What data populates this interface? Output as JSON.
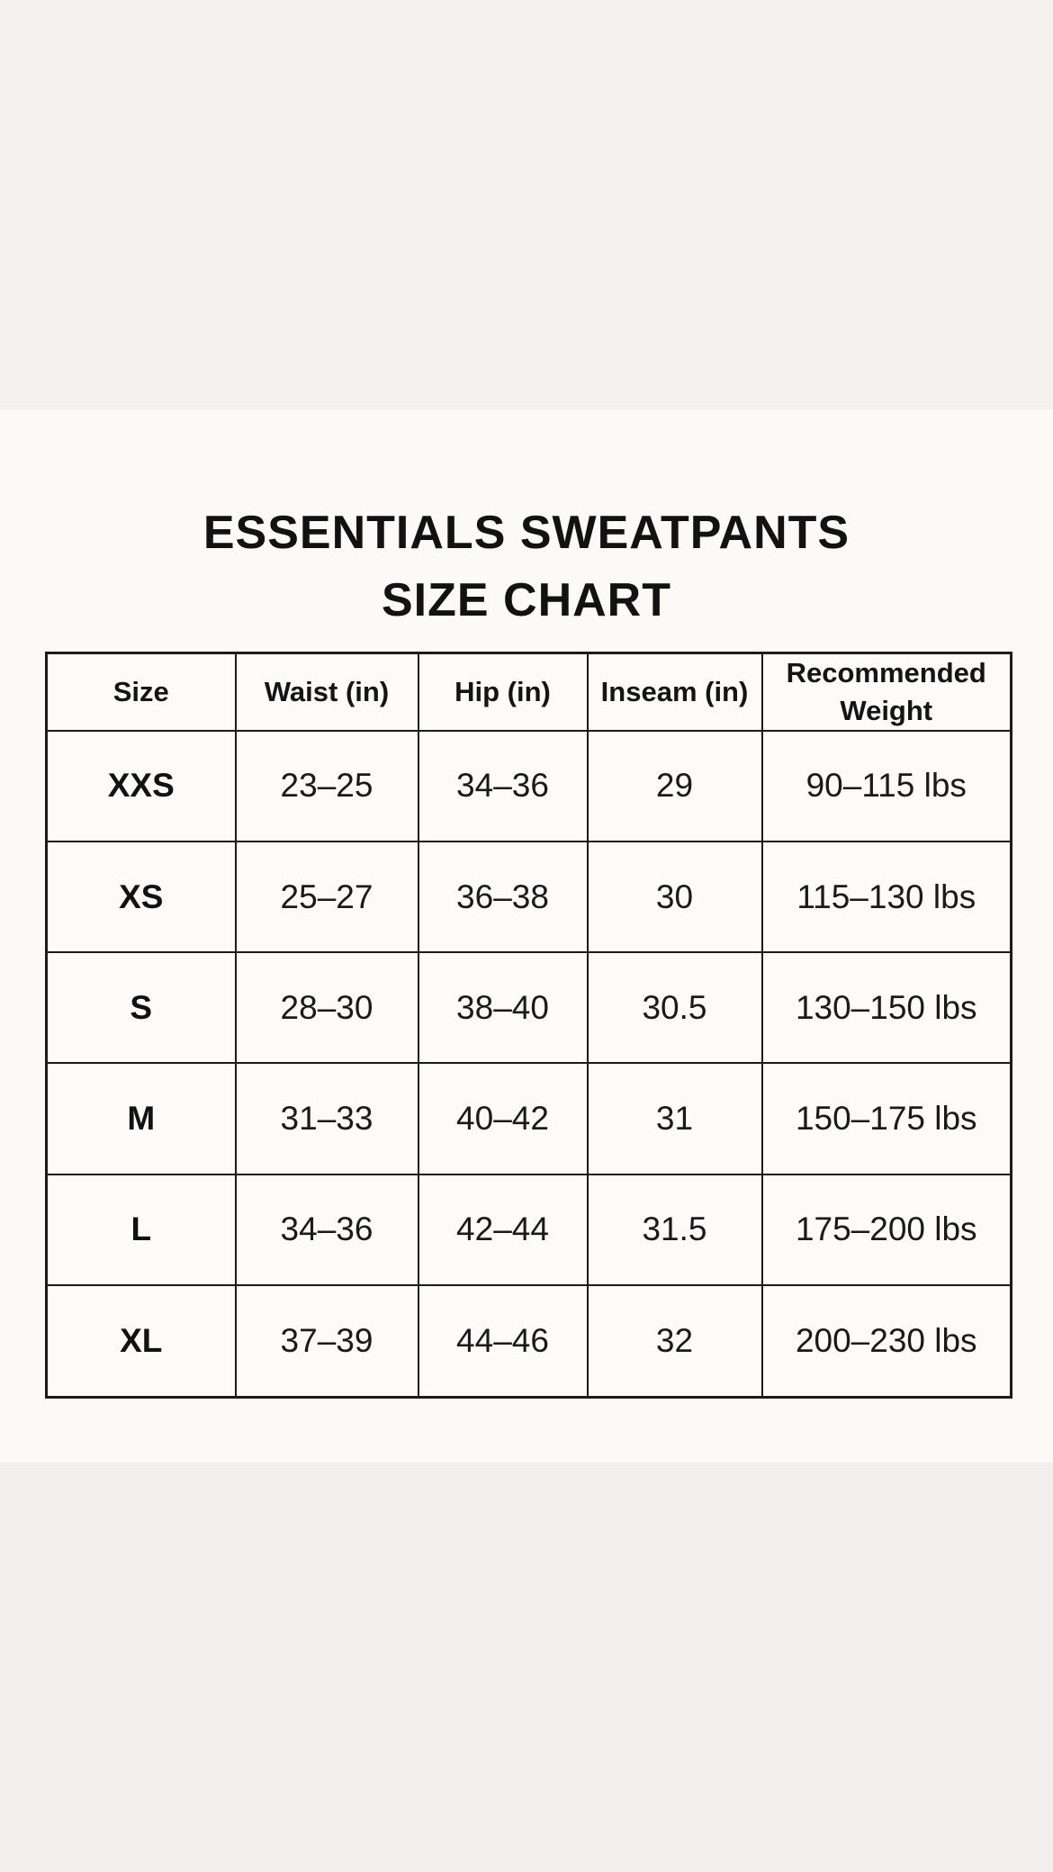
{
  "title": {
    "line1": "ESSENTIALS SWEATPANTS",
    "line2": "SIZE CHART"
  },
  "colors": {
    "band_top": "#f3f2ef",
    "band_bottom": "#f1f0ee",
    "content_background": "#fbfaf7",
    "table_background": "#fcfbf9",
    "table_border": "#1b1b1b",
    "text": "#141414"
  },
  "chart_data": {
    "type": "table",
    "title": "ESSENTIALS SWEATPANTS SIZE CHART",
    "columns": [
      "Size",
      "Waist (in)",
      "Hip (in)",
      "Inseam (in)",
      "Recommended Weight"
    ],
    "rows": [
      [
        "XXS",
        "23–25",
        "34–36",
        "29",
        "90–115 lbs"
      ],
      [
        "XS",
        "25–27",
        "36–38",
        "30",
        "115–130 lbs"
      ],
      [
        "S",
        "28–30",
        "38–40",
        "30.5",
        "130–150 lbs"
      ],
      [
        "M",
        "31–33",
        "40–42",
        "31",
        "150–175 lbs"
      ],
      [
        "L",
        "34–36",
        "42–44",
        "31.5",
        "175–200 lbs"
      ],
      [
        "XL",
        "37–39",
        "44–46",
        "32",
        "200–230 lbs"
      ]
    ]
  }
}
